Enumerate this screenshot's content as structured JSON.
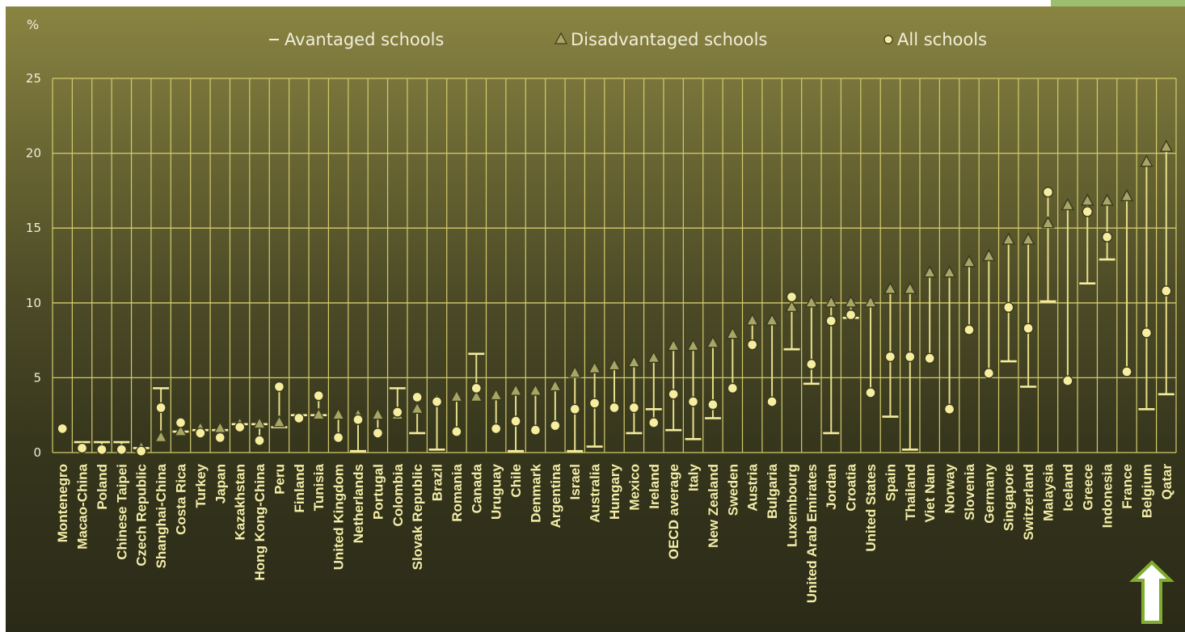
{
  "chart_data": {
    "type": "scatter",
    "title": "",
    "xlabel": "",
    "ylabel": "%",
    "ylim": [
      0,
      25
    ],
    "yticks": [
      0,
      5,
      10,
      15,
      20,
      25
    ],
    "grid": true,
    "legend_position": "top",
    "categories": [
      "Montenegro",
      "Macao-China",
      "Poland",
      "Chinese Taipei",
      "Czech Republic",
      "Shanghai-China",
      "Costa Rica",
      "Turkey",
      "Japan",
      "Kazakhstan",
      "Hong Kong-China",
      "Peru",
      "Finland",
      "Tunisia",
      "United Kingdom",
      "Netherlands",
      "Portugal",
      "Colombia",
      "Slovak Republic",
      "Brazil",
      "Romania",
      "Canada",
      "Uruguay",
      "Chile",
      "Denmark",
      "Argentina",
      "Israel",
      "Australia",
      "Hungary",
      "Mexico",
      "Ireland",
      "OECD average",
      "Italy",
      "New Zealand",
      "Sweden",
      "Austria",
      "Bulgaria",
      "Luxembourg",
      "United Arab Emirates",
      "Jordan",
      "Croatia",
      "United States",
      "Spain",
      "Thailand",
      "Viet Nam",
      "Norway",
      "Slovenia",
      "Germany",
      "Singapore",
      "Switzerland",
      "Malaysia",
      "Iceland",
      "Greece",
      "Indonesia",
      "France",
      "Belgium",
      "Qatar"
    ],
    "series": [
      {
        "name": "Avantaged schools",
        "marker": "dash",
        "values": [
          null,
          0.7,
          0.7,
          0.7,
          0.3,
          4.3,
          1.4,
          1.5,
          1.5,
          1.9,
          1.9,
          1.7,
          2.5,
          2.5,
          null,
          0.1,
          null,
          4.3,
          1.3,
          0.2,
          null,
          6.6,
          null,
          0.1,
          null,
          null,
          0.1,
          0.4,
          null,
          1.3,
          2.9,
          1.5,
          0.9,
          2.3,
          null,
          null,
          null,
          6.9,
          4.6,
          1.3,
          9.0,
          null,
          2.4,
          0.2,
          null,
          null,
          null,
          null,
          6.1,
          4.4,
          10.1,
          null,
          11.3,
          12.9,
          null,
          2.9,
          3.9
        ]
      },
      {
        "name": "Disadvantaged schools",
        "marker": "triangle",
        "values": [
          null,
          null,
          null,
          null,
          0.3,
          1.0,
          1.4,
          1.6,
          1.6,
          1.9,
          1.9,
          2.0,
          null,
          2.5,
          2.5,
          2.5,
          2.5,
          2.5,
          2.9,
          3.5,
          3.7,
          3.7,
          3.8,
          4.1,
          4.1,
          4.4,
          5.3,
          5.6,
          5.8,
          6.0,
          6.3,
          7.1,
          7.1,
          7.3,
          7.9,
          8.8,
          8.8,
          9.7,
          10.0,
          10.0,
          10.0,
          10.0,
          10.9,
          10.9,
          12.0,
          12.0,
          12.7,
          13.1,
          14.2,
          14.2,
          15.3,
          16.5,
          16.8,
          16.8,
          17.1,
          19.4,
          20.4
        ]
      },
      {
        "name": "All schools",
        "marker": "circle",
        "values": [
          1.6,
          0.3,
          0.2,
          0.2,
          0.1,
          3.0,
          2.0,
          1.3,
          1.0,
          1.7,
          0.8,
          4.4,
          2.3,
          3.8,
          1.0,
          2.2,
          1.3,
          2.7,
          3.7,
          3.4,
          1.4,
          4.3,
          1.6,
          2.1,
          1.5,
          1.8,
          2.9,
          3.3,
          3.0,
          3.0,
          2.0,
          3.9,
          3.4,
          3.2,
          4.3,
          7.2,
          3.4,
          10.4,
          5.9,
          8.8,
          9.2,
          4.0,
          6.4,
          6.4,
          6.3,
          2.9,
          8.2,
          5.3,
          9.7,
          8.3,
          17.4,
          4.8,
          16.1,
          14.4,
          5.4,
          8.0,
          10.8
        ]
      }
    ]
  },
  "colors": {
    "background_top": "#8a8442",
    "background_bottom": "#2a2a18",
    "grid": "#d4cc6e",
    "label": "#f3eda8",
    "marker_fill": "#f6eda0",
    "marker_stroke": "#3a3a1c",
    "triangle_fill": "#a8a567",
    "range_line": "#e6df8a",
    "arrow": "#7fae2e"
  },
  "decor": {
    "arrow_icon": "up-arrow-icon",
    "legend_symbols": [
      "dash",
      "triangle",
      "circle"
    ]
  }
}
